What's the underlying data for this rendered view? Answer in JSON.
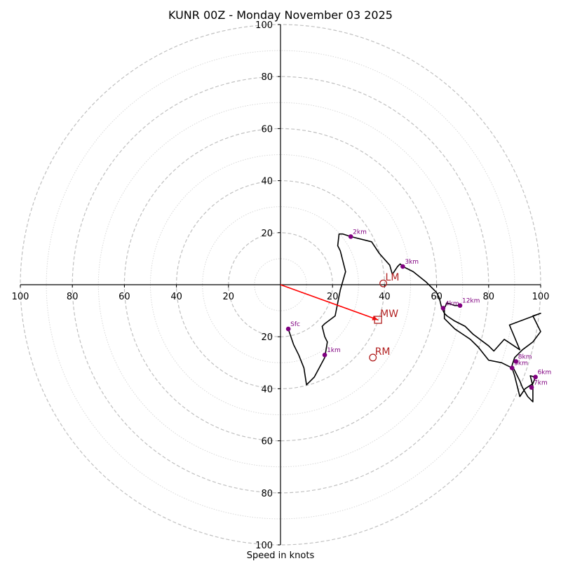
{
  "chart_data": {
    "type": "hodograph",
    "title": "KUNR 00Z - Monday November 03 2025",
    "xlabel": "Speed in knots",
    "ylabel": "",
    "xlim": [
      -100,
      100
    ],
    "ylim": [
      -100,
      100
    ],
    "major_rings": [
      20,
      40,
      60,
      80,
      100
    ],
    "minor_rings": [
      10,
      30,
      50,
      70,
      90
    ],
    "x_tick_labels": [
      "100",
      "80",
      "60",
      "40",
      "20",
      "20",
      "40",
      "60",
      "80",
      "100"
    ],
    "y_tick_labels": [
      "100",
      "80",
      "60",
      "40",
      "20",
      "20",
      "40",
      "60",
      "80",
      "100"
    ],
    "grid": true,
    "trace": {
      "points": [
        [
          3,
          -17
        ],
        [
          5,
          -23
        ],
        [
          7,
          -27
        ],
        [
          9,
          -32
        ],
        [
          10,
          -38.5
        ],
        [
          13,
          -35.5
        ],
        [
          17,
          -28
        ],
        [
          18,
          -22
        ],
        [
          17,
          -20
        ],
        [
          16,
          -16
        ],
        [
          17,
          -15
        ],
        [
          21,
          -12
        ],
        [
          23,
          -2
        ],
        [
          25,
          5
        ],
        [
          23,
          13
        ],
        [
          22,
          15
        ],
        [
          22.5,
          19.5
        ],
        [
          24,
          19.5
        ],
        [
          27,
          18.5
        ],
        [
          35,
          16.5
        ],
        [
          38,
          12
        ],
        [
          42,
          7.5
        ],
        [
          43,
          4
        ],
        [
          45,
          7
        ],
        [
          46,
          8
        ],
        [
          47,
          7
        ],
        [
          51,
          5
        ],
        [
          56,
          1
        ],
        [
          58,
          -1
        ],
        [
          60,
          -3
        ],
        [
          61,
          -5
        ],
        [
          62,
          -9
        ],
        [
          63,
          -11
        ],
        [
          64,
          -12
        ],
        [
          67,
          -14
        ],
        [
          71,
          -16
        ],
        [
          74,
          -19
        ],
        [
          80,
          -23.5
        ],
        [
          82,
          -25.5
        ],
        [
          86,
          -21
        ],
        [
          92,
          -25
        ],
        [
          88,
          -15.5
        ],
        [
          100,
          -11
        ],
        [
          97,
          -12
        ],
        [
          100,
          -18
        ],
        [
          97,
          -22
        ],
        [
          93,
          -25
        ],
        [
          90,
          -28
        ],
        [
          89,
          -31
        ],
        [
          90,
          -33
        ],
        [
          92,
          -37
        ],
        [
          93,
          -39.5
        ],
        [
          95,
          -43
        ],
        [
          97,
          -45
        ],
        [
          97,
          -39
        ],
        [
          96,
          -35
        ],
        [
          98,
          -35.5
        ],
        [
          97,
          -38
        ],
        [
          94,
          -40
        ],
        [
          92,
          -43
        ],
        [
          90,
          -35
        ],
        [
          89,
          -32
        ],
        [
          85,
          -30
        ],
        [
          80,
          -29
        ],
        [
          76,
          -24
        ],
        [
          73,
          -21
        ],
        [
          70,
          -19
        ],
        [
          67,
          -17
        ],
        [
          65,
          -15
        ],
        [
          63,
          -13
        ],
        [
          63,
          -10
        ],
        [
          63,
          -9
        ],
        [
          64,
          -7
        ],
        [
          67,
          -8
        ],
        [
          69,
          -8
        ]
      ],
      "height_markers": [
        {
          "label": "Sfc",
          "x": 3,
          "y": -17
        },
        {
          "label": "1km",
          "x": 17,
          "y": -27
        },
        {
          "label": "2km",
          "x": 27,
          "y": 18.5
        },
        {
          "label": "3km",
          "x": 47,
          "y": 7
        },
        {
          "label": "4km",
          "x": 62.5,
          "y": -9
        },
        {
          "label": "5km",
          "x": 89,
          "y": -32
        },
        {
          "label": "6km",
          "x": 98,
          "y": -35.5
        },
        {
          "label": "7km",
          "x": 96.5,
          "y": -39.5
        },
        {
          "label": "8km",
          "x": 90.5,
          "y": -29.5
        },
        {
          "label": "12km",
          "x": 69,
          "y": -8
        }
      ]
    },
    "storm_motions": [
      {
        "label": "LM",
        "x": 39.5,
        "y": 0.5,
        "marker": "circle"
      },
      {
        "label": "MW",
        "x": 37.5,
        "y": -13.5,
        "marker": "square"
      },
      {
        "label": "RM",
        "x": 35.5,
        "y": -28,
        "marker": "circle"
      }
    ],
    "mean_wind_vector": {
      "x": 37.5,
      "y": -13.5
    },
    "colors": {
      "trace": "#000000",
      "height_marker": "#800080",
      "storm_motion": "#b22222",
      "mean_wind_vector": "#ff0000",
      "major_ring": "#c0c0c0",
      "minor_ring": "#d8d8d8"
    }
  }
}
